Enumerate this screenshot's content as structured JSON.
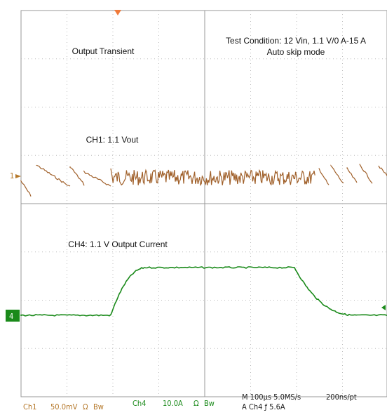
{
  "screen": {
    "annotations": {
      "title": "Output Transient",
      "condition": "Test Condition: 12 Vin, 1.1 V/0 A-15 A",
      "mode": "Auto skip mode",
      "ch1_label": "CH1: 1.1 Vout",
      "ch4_label": "CH4: 1.1 V Output Current"
    },
    "markers": {
      "ch1": "1",
      "ch4": "4"
    },
    "status": {
      "ch1": "Ch1",
      "ch1_scale": "50.0mV",
      "ch1_coupling": "Ω",
      "ch1_bw": "Bw",
      "ch4": "Ch4",
      "ch4_scale": "10.0A",
      "ch4_coupling": "Ω",
      "ch4_bw": "Bw",
      "timebase": "M 100µs 5.0MS/s",
      "resolution": "200ns/pt",
      "trigger": "A  Ch4  ƒ  5.6A"
    }
  }
}
